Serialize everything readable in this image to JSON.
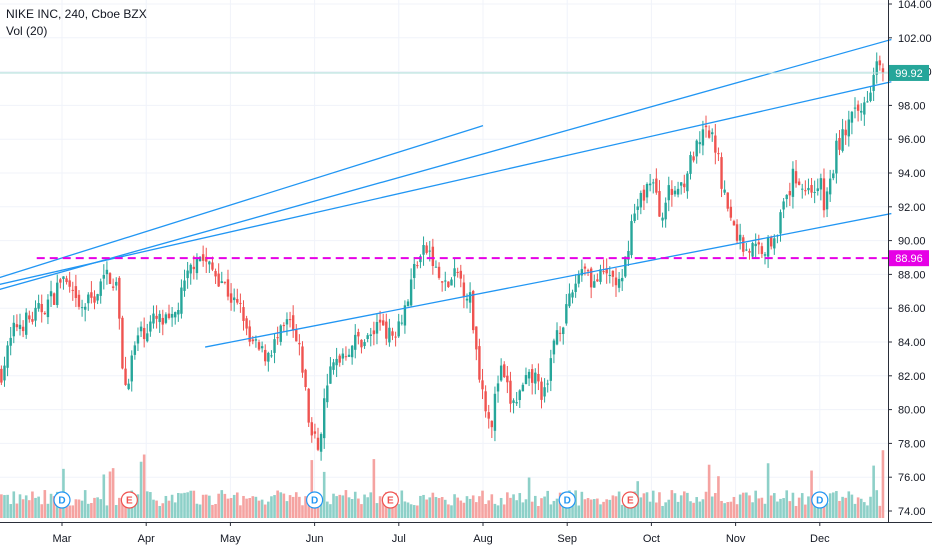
{
  "legend": {
    "title": "NIKE INC, 240, Cboe BZX",
    "volume": "Vol (20)"
  },
  "colors": {
    "up": "#26a69a",
    "down": "#ef5350",
    "vol_up": "#8dd0c8",
    "vol_down": "#f5a3a1",
    "trendline": "#2196f3",
    "level": "#e600e6",
    "price_line": "#b2dfdb",
    "grid": "#f0f3fa",
    "axis_text": "#131722"
  },
  "chart_data": {
    "type": "candlestick",
    "title": "NIKE INC, 240, Cboe BZX",
    "y_axis": {
      "ticks": [
        "104.00",
        "102.00",
        "100.00",
        "98.00",
        "96.00",
        "94.00",
        "92.00",
        "90.00",
        "88.00",
        "86.00",
        "84.00",
        "82.00",
        "80.00",
        "78.00",
        "76.00",
        "74.00"
      ],
      "ylim": [
        73.0,
        104.5
      ]
    },
    "x_axis": {
      "ticks": [
        "Mar",
        "Apr",
        "May",
        "Jun",
        "Jul",
        "Aug",
        "Sep",
        "Oct",
        "Nov",
        "Dec"
      ]
    },
    "price_labels": [
      {
        "label": "99.92",
        "value": 99.92,
        "color": "#26a69a"
      },
      {
        "label": "88.96",
        "value": 88.96,
        "color": "#e600e6"
      }
    ],
    "horizontal_level": 88.96,
    "last_price": 99.92,
    "event_markers": [
      {
        "label": "D",
        "month_pos": 0.0
      },
      {
        "label": "E",
        "month_pos": 0.8
      },
      {
        "label": "D",
        "month_pos": 3.0
      },
      {
        "label": "E",
        "month_pos": 3.9
      },
      {
        "label": "D",
        "month_pos": 6.0
      },
      {
        "label": "E",
        "month_pos": 6.75
      },
      {
        "label": "D",
        "month_pos": 9.0
      }
    ],
    "trendlines": [
      {
        "from": [
          -0.75,
          87.1
        ],
        "to": [
          9.85,
          101.9
        ]
      },
      {
        "from": [
          -0.75,
          87.4
        ],
        "to": [
          9.85,
          99.4
        ]
      },
      {
        "from": [
          1.7,
          83.7
        ],
        "to": [
          9.85,
          91.6
        ]
      },
      {
        "from": [
          -0.75,
          87.8
        ],
        "to": [
          5.0,
          96.8
        ]
      }
    ],
    "close_path": [
      {
        "t": -0.72,
        "v": 82.2
      },
      {
        "t": -0.55,
        "v": 85.0
      },
      {
        "t": -0.35,
        "v": 85.4
      },
      {
        "t": -0.1,
        "v": 86.7
      },
      {
        "t": 0.0,
        "v": 87.9
      },
      {
        "t": 0.2,
        "v": 85.8
      },
      {
        "t": 0.4,
        "v": 86.8
      },
      {
        "t": 0.55,
        "v": 88.1
      },
      {
        "t": 0.65,
        "v": 87.3
      },
      {
        "t": 0.7,
        "v": 83.6
      },
      {
        "t": 0.75,
        "v": 81.3
      },
      {
        "t": 0.9,
        "v": 84.3
      },
      {
        "t": 1.1,
        "v": 85.3
      },
      {
        "t": 1.3,
        "v": 85.0
      },
      {
        "t": 1.45,
        "v": 87.2
      },
      {
        "t": 1.6,
        "v": 89.3
      },
      {
        "t": 1.75,
        "v": 88.4
      },
      {
        "t": 1.9,
        "v": 87.7
      },
      {
        "t": 2.05,
        "v": 86.2
      },
      {
        "t": 2.15,
        "v": 85.8
      },
      {
        "t": 2.2,
        "v": 84.1
      },
      {
        "t": 2.4,
        "v": 83.2
      },
      {
        "t": 2.55,
        "v": 84.0
      },
      {
        "t": 2.7,
        "v": 85.2
      },
      {
        "t": 2.85,
        "v": 82.8
      },
      {
        "t": 2.95,
        "v": 78.6
      },
      {
        "t": 3.05,
        "v": 77.8
      },
      {
        "t": 3.15,
        "v": 81.8
      },
      {
        "t": 3.3,
        "v": 83.2
      },
      {
        "t": 3.5,
        "v": 84.1
      },
      {
        "t": 3.65,
        "v": 84.2
      },
      {
        "t": 3.8,
        "v": 85.4
      },
      {
        "t": 3.9,
        "v": 84.2
      },
      {
        "t": 4.0,
        "v": 85.3
      },
      {
        "t": 4.1,
        "v": 86.4
      },
      {
        "t": 4.2,
        "v": 88.8
      },
      {
        "t": 4.35,
        "v": 89.5
      },
      {
        "t": 4.45,
        "v": 88.0
      },
      {
        "t": 4.55,
        "v": 87.2
      },
      {
        "t": 4.7,
        "v": 88.0
      },
      {
        "t": 4.85,
        "v": 86.5
      },
      {
        "t": 4.92,
        "v": 83.5
      },
      {
        "t": 5.0,
        "v": 81.0
      },
      {
        "t": 5.1,
        "v": 79.2
      },
      {
        "t": 5.2,
        "v": 82.4
      },
      {
        "t": 5.35,
        "v": 80.2
      },
      {
        "t": 5.5,
        "v": 81.4
      },
      {
        "t": 5.6,
        "v": 82.0
      },
      {
        "t": 5.75,
        "v": 80.6
      },
      {
        "t": 5.85,
        "v": 84.5
      },
      {
        "t": 6.0,
        "v": 85.8
      },
      {
        "t": 6.1,
        "v": 87.6
      },
      {
        "t": 6.2,
        "v": 88.8
      },
      {
        "t": 6.3,
        "v": 87.5
      },
      {
        "t": 6.5,
        "v": 88.0
      },
      {
        "t": 6.65,
        "v": 87.2
      },
      {
        "t": 6.75,
        "v": 90.8
      },
      {
        "t": 6.85,
        "v": 92.2
      },
      {
        "t": 7.0,
        "v": 93.8
      },
      {
        "t": 7.1,
        "v": 91.5
      },
      {
        "t": 7.2,
        "v": 92.7
      },
      {
        "t": 7.35,
        "v": 93.3
      },
      {
        "t": 7.5,
        "v": 95.0
      },
      {
        "t": 7.65,
        "v": 96.4
      },
      {
        "t": 7.75,
        "v": 95.8
      },
      {
        "t": 7.85,
        "v": 93.2
      },
      {
        "t": 7.95,
        "v": 91.0
      },
      {
        "t": 8.1,
        "v": 89.6
      },
      {
        "t": 8.25,
        "v": 89.5
      },
      {
        "t": 8.4,
        "v": 89.8
      },
      {
        "t": 8.55,
        "v": 91.5
      },
      {
        "t": 8.7,
        "v": 94.0
      },
      {
        "t": 8.85,
        "v": 92.9
      },
      {
        "t": 9.0,
        "v": 93.5
      },
      {
        "t": 9.05,
        "v": 92.0
      },
      {
        "t": 9.15,
        "v": 94.0
      },
      {
        "t": 9.2,
        "v": 95.5
      },
      {
        "t": 9.35,
        "v": 97.0
      },
      {
        "t": 9.5,
        "v": 97.7
      },
      {
        "t": 9.6,
        "v": 99.3
      },
      {
        "t": 9.67,
        "v": 100.8
      },
      {
        "t": 9.7,
        "v": 101.3
      },
      {
        "t": 9.75,
        "v": 99.92
      }
    ]
  }
}
